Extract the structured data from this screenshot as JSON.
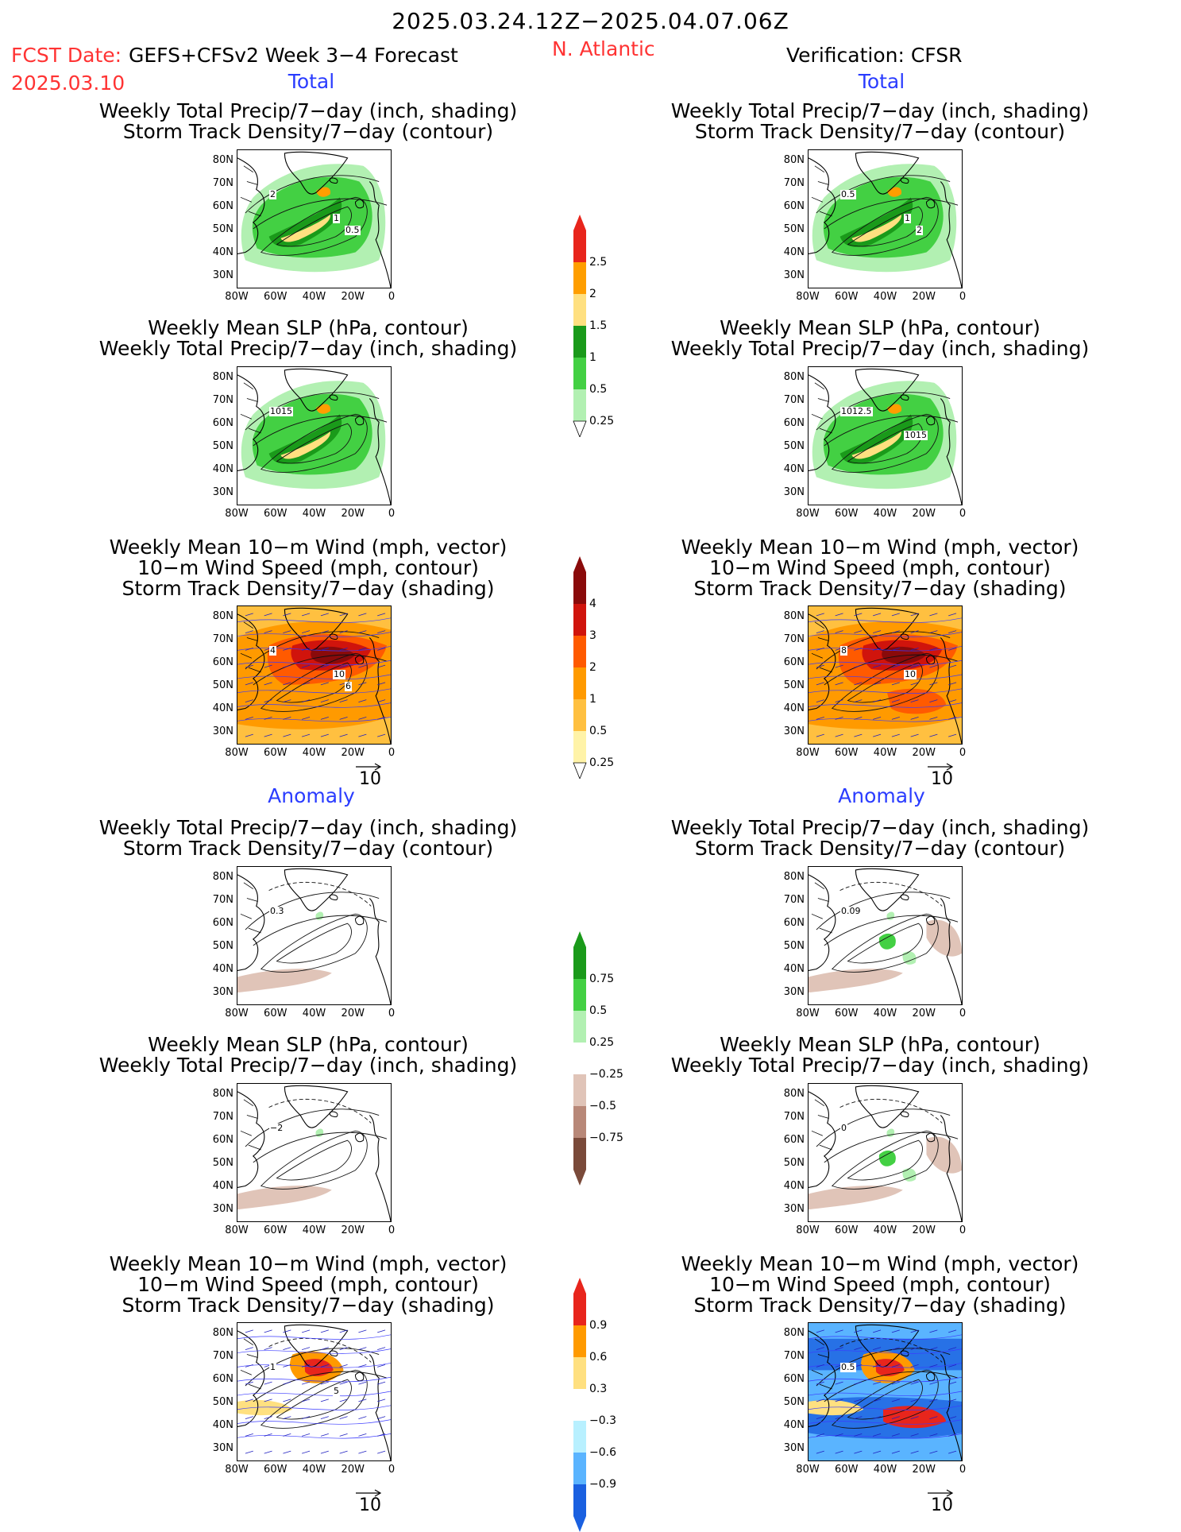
{
  "header": {
    "date_range": "2025.03.24.12Z−2025.04.07.06Z",
    "fcst_label": "FCST Date:",
    "fcst_date": "2025.03.10",
    "model": "GEFS+CFSv2 Week 3−4 Forecast",
    "region": "N. Atlantic",
    "verification": "Verification: CFSR"
  },
  "sections": {
    "total": "Total",
    "anomaly": "Anomaly"
  },
  "titles": {
    "precip_track": [
      "Weekly Total Precip/7−day (inch, shading)",
      "Storm Track Density/7−day (contour)"
    ],
    "slp_precip": [
      "Weekly Mean SLP (hPa, contour)",
      "Weekly Total Precip/7−day (inch, shading)"
    ],
    "wind_track": [
      "Weekly Mean 10−m Wind (mph, vector)",
      "10−m Wind Speed (mph, contour)",
      "Storm Track Density/7−day (shading)"
    ]
  },
  "axes": {
    "lat_ticks": [
      "80N",
      "70N",
      "60N",
      "50N",
      "40N",
      "30N"
    ],
    "lon_ticks": [
      "80W",
      "60W",
      "40W",
      "20W",
      "0"
    ]
  },
  "colorbars": {
    "precip_total": {
      "labels": [
        "2.5",
        "2",
        "1.5",
        "1",
        "0.5",
        "0.25"
      ],
      "colors": [
        "#e8251c",
        "#ff9e00",
        "#ffe080",
        "#1a9a1a",
        "#43d043",
        "#b2f0b2"
      ]
    },
    "track_total": {
      "labels": [
        "4",
        "3",
        "2",
        "1",
        "0.5",
        "0.25"
      ],
      "colors": [
        "#8a0a0a",
        "#d0140c",
        "#ff5a00",
        "#ff9a00",
        "#ffc040",
        "#fff3a8"
      ]
    },
    "precip_anom": {
      "labels": [
        "0.75",
        "0.5",
        "0.25",
        "−0.25",
        "−0.5",
        "−0.75"
      ],
      "colors": [
        "#1a9a1a",
        "#43d043",
        "#b2f0b2",
        "#ffffff",
        "#e0c4b8",
        "#b88878",
        "#7a4a3a"
      ]
    },
    "track_anom": {
      "labels": [
        "0.9",
        "0.6",
        "0.3",
        "−0.3",
        "−0.6",
        "−0.9"
      ],
      "colors": [
        "#e8251c",
        "#ff9a00",
        "#ffe080",
        "#ffffff",
        "#b8f0ff",
        "#5ab4ff",
        "#1a60e0"
      ]
    }
  },
  "contour_labels": {
    "p1": [
      "2",
      "1",
      "0.5"
    ],
    "p2": [
      "0.5",
      "1",
      "2"
    ],
    "p3": [
      "1015"
    ],
    "p4": [
      "1012.5",
      "1015"
    ],
    "p5": [
      "4",
      "10",
      "6"
    ],
    "p6": [
      "8",
      "10"
    ],
    "p7": [
      "0.3"
    ],
    "p8": [
      "0.09"
    ],
    "p9": [
      "−2"
    ],
    "p10": [
      "0"
    ],
    "p11": [
      "1",
      "5"
    ],
    "p12": [
      "0.5"
    ]
  },
  "vector_ref": "10"
}
